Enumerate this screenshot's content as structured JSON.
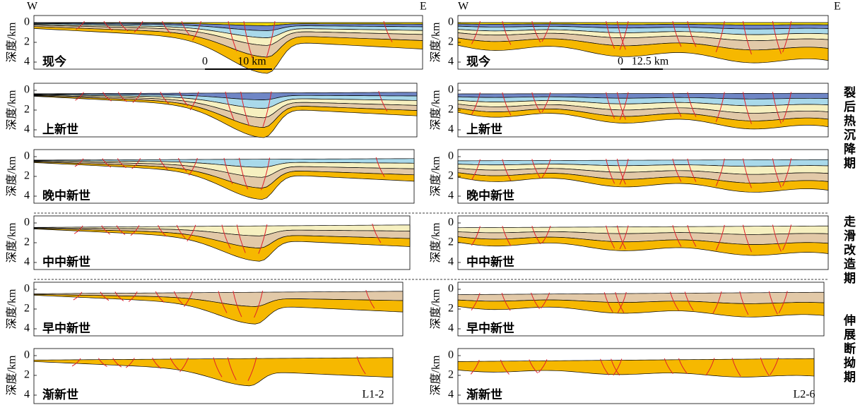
{
  "columns": [
    {
      "west": "W",
      "east": "E",
      "scale": {
        "zero": "0",
        "length": "10 km"
      },
      "section": "L1-2"
    },
    {
      "west": "W",
      "east": "E",
      "scale": {
        "zero": "0",
        "length": "12.5 km"
      },
      "section": "L2-6"
    }
  ],
  "axis": {
    "title": "深度/km",
    "ticks": [
      0,
      2,
      4
    ]
  },
  "panels": [
    {
      "label": "现今"
    },
    {
      "label": "上新世"
    },
    {
      "label": "晚中新世"
    },
    {
      "label": "中中新世"
    },
    {
      "label": "早中新世"
    },
    {
      "label": "渐新世"
    }
  ],
  "phases": [
    "裂后热沉降期",
    "走滑改造期",
    "伸展断拗期"
  ]
}
